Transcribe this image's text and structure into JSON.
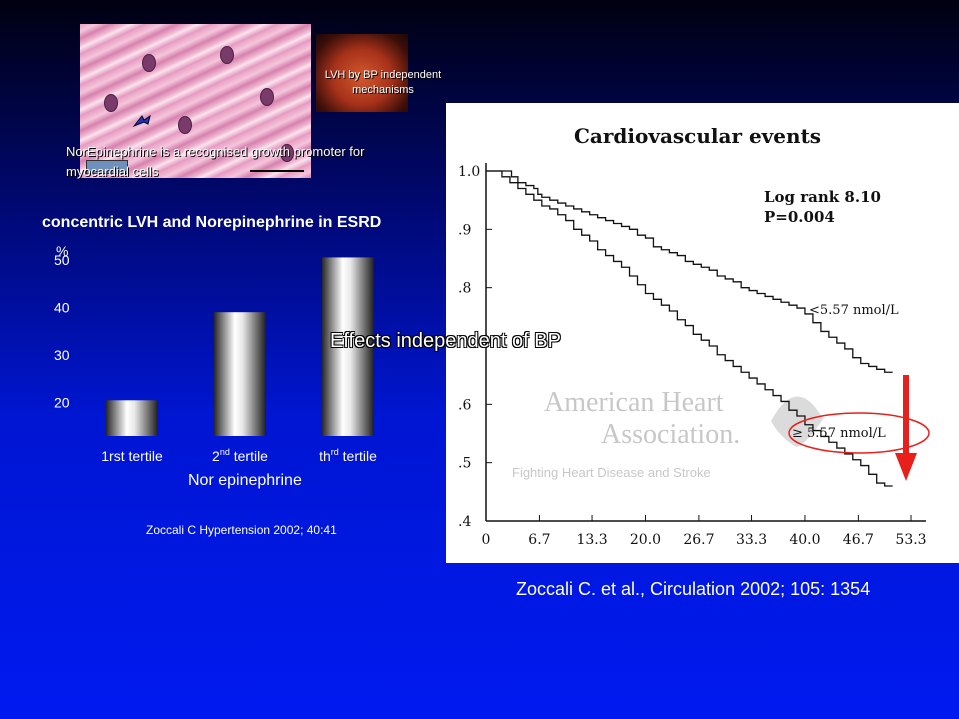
{
  "slide": {
    "histology_caption": "NorEpinephrine is a recognised growth promoter for myocardial cells",
    "heart_caption": "LVH by BP independent mechanisms",
    "overlay_note": "Effects independent of BP",
    "left_reference": "Zoccali C  Hypertension 2002; 40:41",
    "right_reference": "Zoccali C. et al., Circulation  2002; 105: 1354"
  },
  "colors": {
    "background_top": "#000010",
    "background_bottom": "#0019f0",
    "arrow": "#e8201c",
    "ellipse": "#e8201c"
  },
  "icons": {
    "histology": "myocardial-tissue-image",
    "heart": "heart-image",
    "arrow": "down-arrow-icon"
  },
  "chart_data": [
    {
      "type": "bar",
      "title": "concentric LVH and Norepinephrine in ESRD",
      "ylabel": "%",
      "xlabel": "Nor epinephrine",
      "ylim": [
        13,
        55
      ],
      "yticks": [
        20,
        30,
        40,
        50
      ],
      "categories": [
        {
          "text": "1rst tertile",
          "sup": "",
          "tail": ""
        },
        {
          "text": "2",
          "sup": "nd",
          "tail": " tertile"
        },
        {
          "text": "th",
          "sup": "rd",
          "tail": " tertile"
        }
      ],
      "values": [
        20.5,
        39,
        50.5
      ]
    },
    {
      "type": "line",
      "title": "Cardiovascular events",
      "stat_line1": "Log rank 8.10",
      "stat_line2": "P=0.004",
      "xticks": [
        "0",
        "6.7",
        "13.3",
        "20.0",
        "26.7",
        "33.3",
        "40.0",
        "46.7",
        "53.3"
      ],
      "yticks": [
        "1.0",
        ".9",
        ".8",
        ".6",
        ".5",
        ".4"
      ],
      "xlim": [
        0,
        53.3
      ],
      "ylim": [
        0.4,
        1.0
      ],
      "watermark_line1": "American Heart",
      "watermark_line2": "Association.",
      "watermark_line3": "Fighting Heart Disease and Stroke",
      "series": [
        {
          "name": "<5.57 nmol/L",
          "x": [
            0,
            1.5,
            2.7,
            3.2,
            4,
            5,
            6,
            6.5,
            7,
            8,
            9,
            10,
            11,
            12,
            13,
            14,
            15,
            16,
            17,
            18,
            19,
            20,
            21,
            22,
            23,
            24,
            25,
            26,
            27,
            28,
            29,
            30,
            31,
            32,
            33,
            34,
            35,
            36,
            37,
            38,
            39,
            40,
            41,
            42,
            43,
            44,
            45,
            46,
            47,
            48,
            49,
            50,
            51
          ],
          "y": [
            1.0,
            1.0,
            1.0,
            0.99,
            0.98,
            0.975,
            0.97,
            0.96,
            0.955,
            0.95,
            0.945,
            0.94,
            0.935,
            0.93,
            0.925,
            0.92,
            0.915,
            0.91,
            0.905,
            0.9,
            0.89,
            0.885,
            0.87,
            0.865,
            0.86,
            0.855,
            0.845,
            0.84,
            0.835,
            0.83,
            0.82,
            0.815,
            0.81,
            0.8,
            0.795,
            0.79,
            0.785,
            0.78,
            0.775,
            0.77,
            0.765,
            0.755,
            0.74,
            0.725,
            0.715,
            0.705,
            0.695,
            0.68,
            0.67,
            0.665,
            0.66,
            0.655,
            0.655
          ]
        },
        {
          "name": "≥ 5.57 nmol/L",
          "x": [
            0,
            2,
            3,
            4,
            5,
            6,
            7,
            8,
            9,
            10,
            11,
            12,
            13,
            14,
            15,
            16,
            17,
            18,
            19,
            20,
            21,
            22,
            23,
            24,
            25,
            26,
            27,
            28,
            29,
            30,
            31,
            32,
            33,
            34,
            35,
            36,
            37,
            38,
            39,
            40,
            41,
            42,
            43,
            44,
            45,
            46,
            47,
            48,
            49,
            50,
            51
          ],
          "y": [
            1.0,
            0.99,
            0.98,
            0.97,
            0.96,
            0.95,
            0.94,
            0.935,
            0.925,
            0.915,
            0.9,
            0.89,
            0.88,
            0.865,
            0.855,
            0.845,
            0.835,
            0.82,
            0.805,
            0.79,
            0.78,
            0.77,
            0.76,
            0.745,
            0.735,
            0.72,
            0.71,
            0.7,
            0.685,
            0.675,
            0.665,
            0.655,
            0.645,
            0.635,
            0.625,
            0.615,
            0.605,
            0.59,
            0.58,
            0.565,
            0.555,
            0.545,
            0.535,
            0.525,
            0.515,
            0.505,
            0.495,
            0.48,
            0.465,
            0.46,
            0.46
          ]
        }
      ]
    }
  ]
}
